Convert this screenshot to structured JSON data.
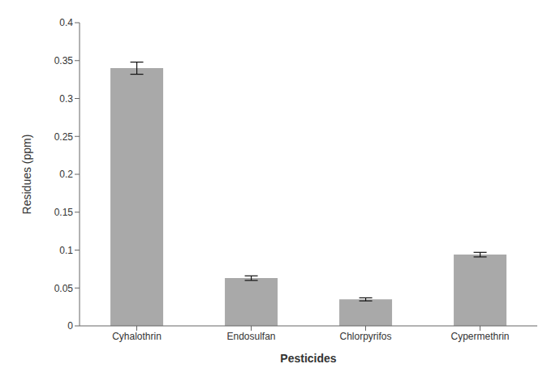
{
  "chart_data": {
    "type": "bar",
    "categories": [
      "Cyhalothrin",
      "Endosulfan",
      "Chlorpyrifos",
      "Cypermethrin"
    ],
    "values": [
      0.34,
      0.063,
      0.035,
      0.094
    ],
    "errors": [
      0.008,
      0.003,
      0.002,
      0.003
    ],
    "color": "#A9A9A9",
    "xlabel": "Pesticides",
    "ylabel": "Residues (ppm)",
    "ylim": [
      0,
      0.4
    ],
    "yticks": [
      0,
      0.05,
      0.1,
      0.15,
      0.2,
      0.25,
      0.3,
      0.35,
      0.4
    ],
    "grid": false
  }
}
